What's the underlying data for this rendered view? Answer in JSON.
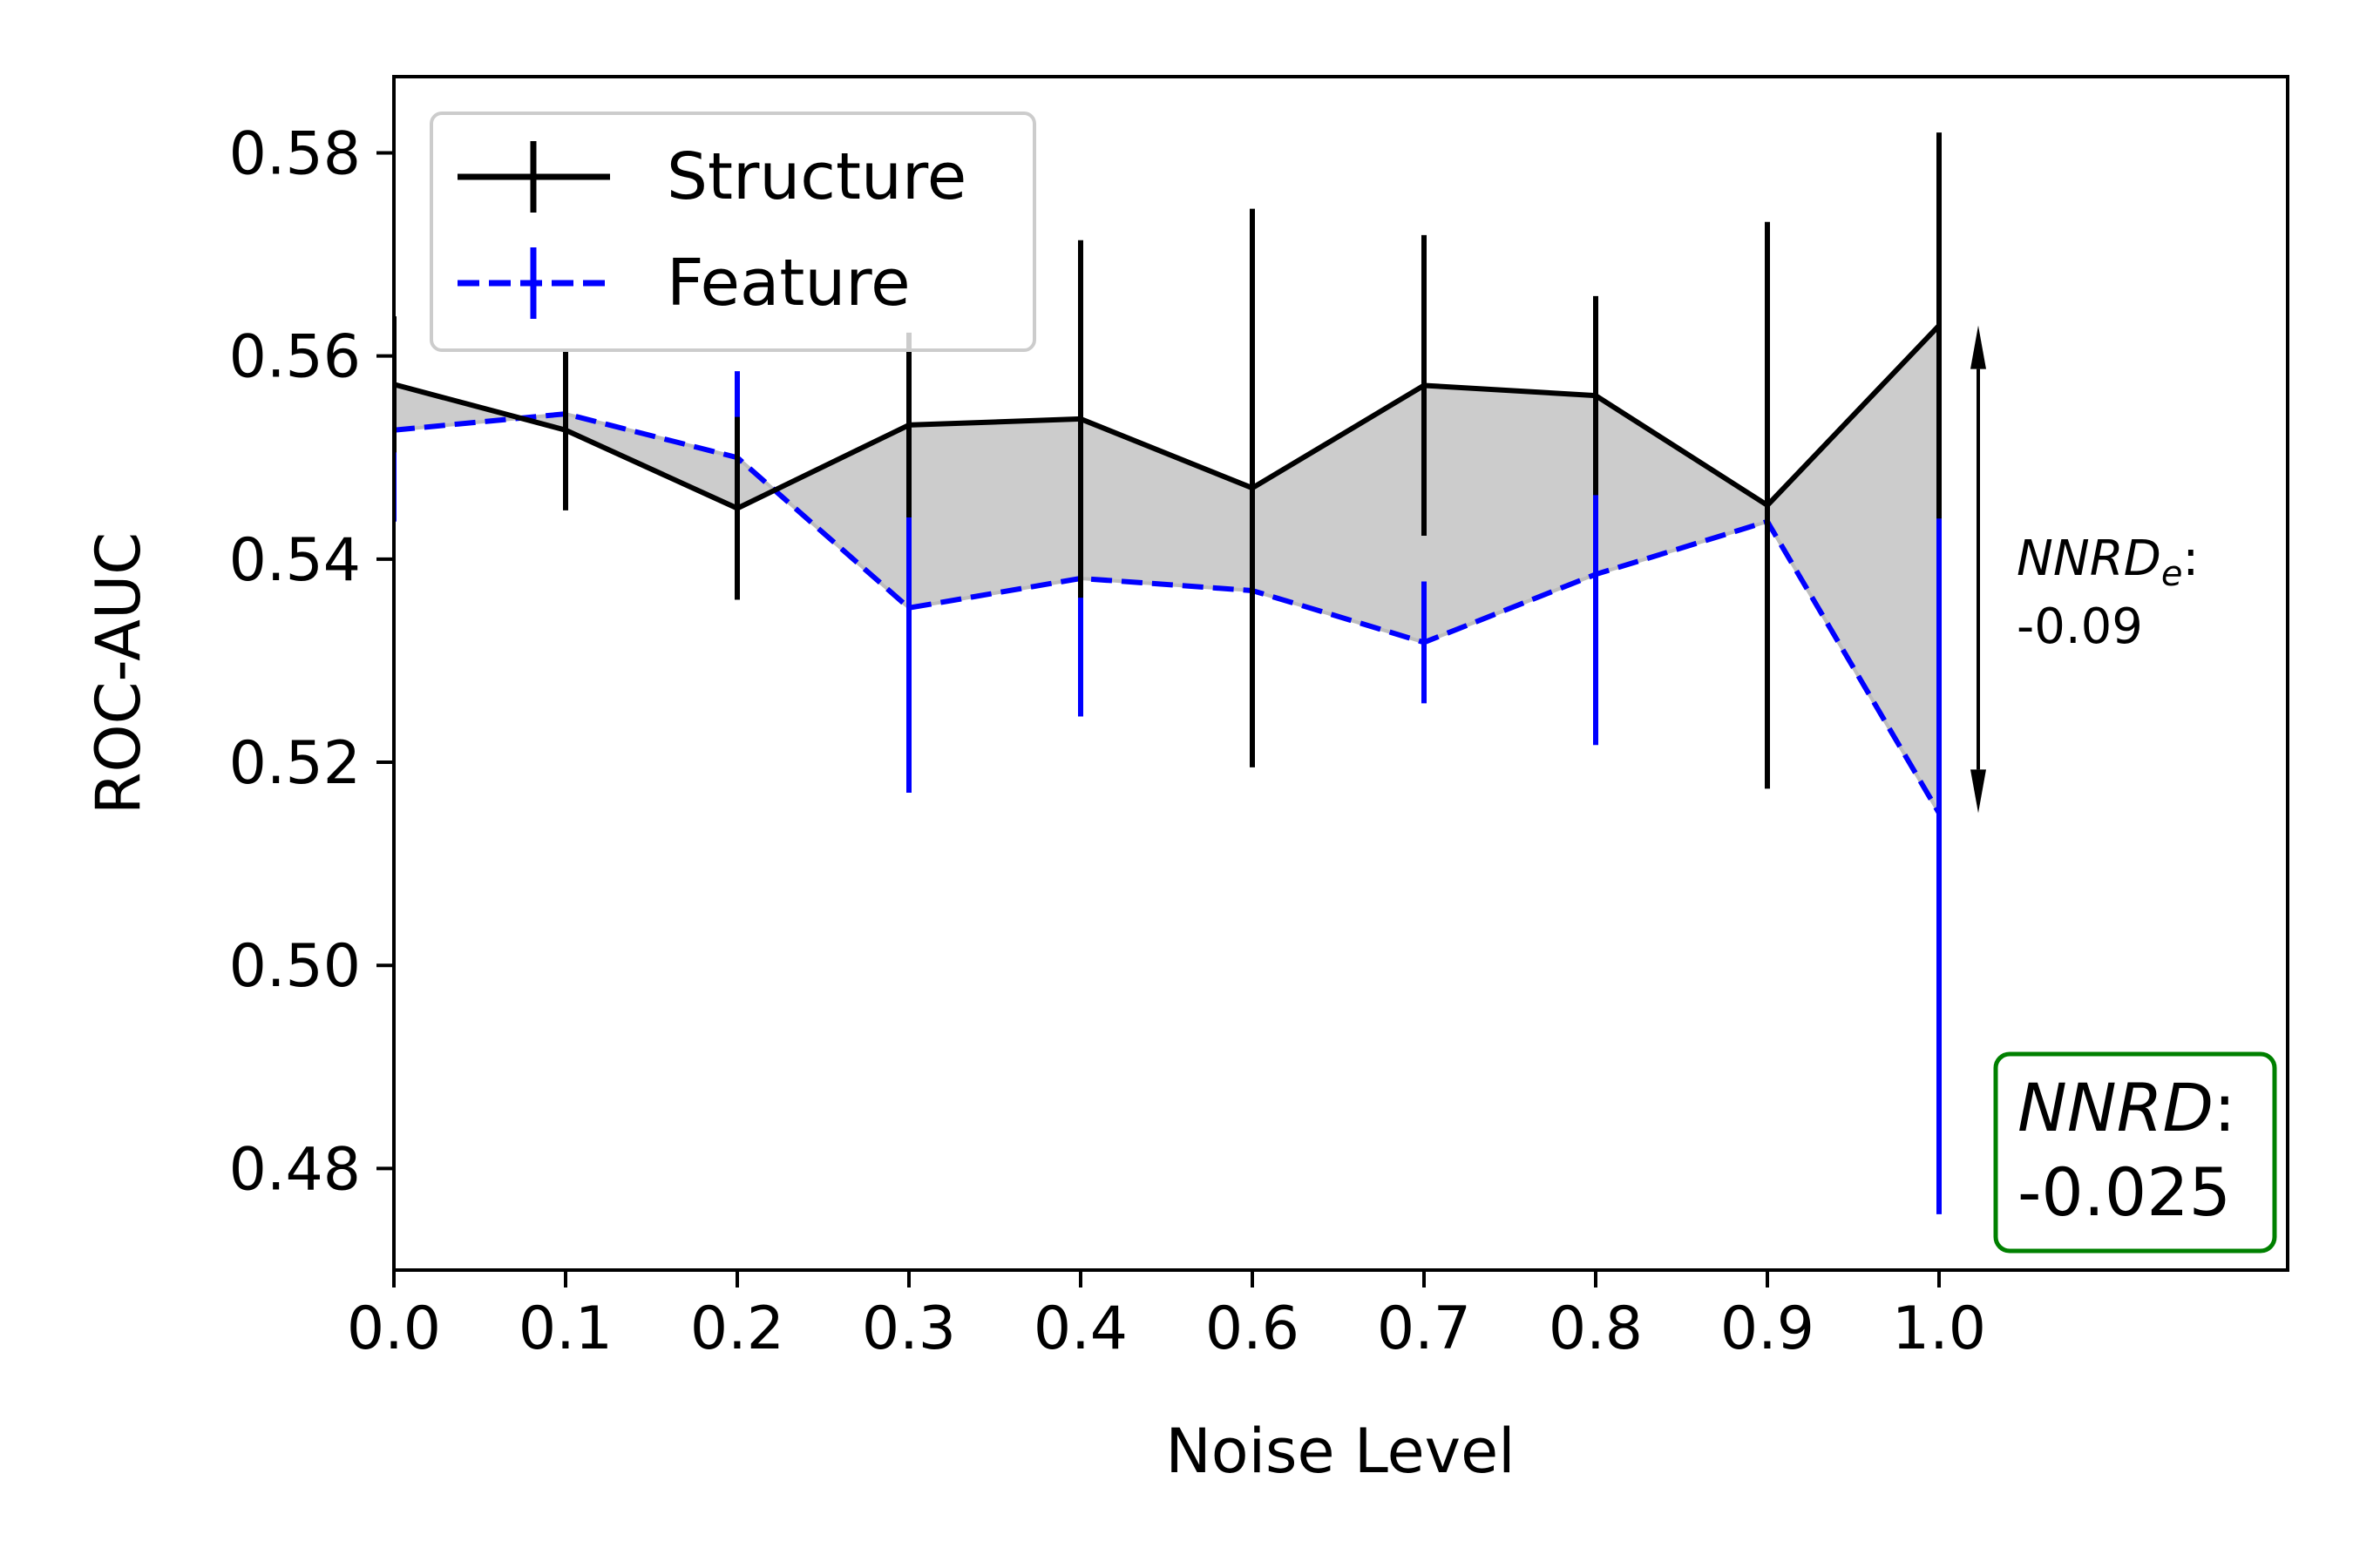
{
  "chart_data": {
    "type": "line",
    "xlabel": "Noise Level",
    "ylabel": "ROC-AUC",
    "categories": [
      "0.0",
      "0.1",
      "0.2",
      "0.3",
      "0.4",
      "0.6",
      "0.7",
      "0.8",
      "0.9",
      "1.0"
    ],
    "ylim": [
      0.47,
      0.5875
    ],
    "yticks": [
      "0.48",
      "0.50",
      "0.52",
      "0.54",
      "0.56",
      "0.58"
    ],
    "grid": false,
    "legend_position": "upper left",
    "shade_between_series": true,
    "series": [
      {
        "name": "Structure",
        "color": "#000000",
        "style": "solid",
        "values": [
          0.5572,
          0.5527,
          0.545,
          0.5532,
          0.5538,
          0.547,
          0.5571,
          0.5561,
          0.5453,
          0.563
        ],
        "error": [
          0.0067,
          0.0079,
          0.009,
          0.0091,
          0.0176,
          0.0275,
          0.0148,
          0.0098,
          0.0279,
          0.019
        ]
      },
      {
        "name": "Feature",
        "color": "#0000ff",
        "style": "dashed",
        "values": [
          0.5527,
          0.5543,
          0.55,
          0.5352,
          0.5381,
          0.5369,
          0.5318,
          0.5385,
          0.5437,
          0.515
        ],
        "error": [
          0.009,
          0.0022,
          0.0085,
          0.0182,
          0.0136,
          0.0173,
          0.006,
          0.0168,
          0.0124,
          0.0395
        ]
      }
    ],
    "annotations": {
      "nnrd_e": {
        "label": "NNRD",
        "subscript": "e",
        "suffix": ":",
        "value": "-0.09"
      },
      "nnrd": {
        "label": "NNRD",
        "suffix": ":",
        "value": "-0.025",
        "box_color": "#008000"
      }
    }
  }
}
